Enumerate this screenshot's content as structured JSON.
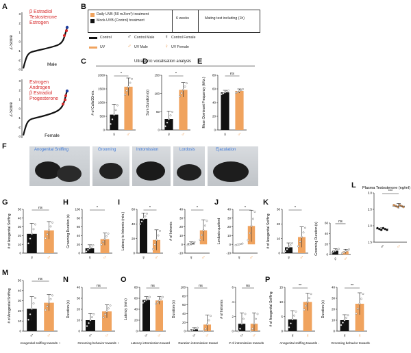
{
  "panels": {
    "A": "A",
    "B": "B",
    "C": "C",
    "D": "D",
    "E": "E",
    "F": "F",
    "G": "G",
    "H": "H",
    "I": "I",
    "J": "J",
    "K": "K",
    "L": "L",
    "M": "M",
    "N": "N",
    "O": "O",
    "P": "P"
  },
  "panelA": {
    "male_genes": [
      "β Estradiol",
      "Testosterone",
      "Estrogen"
    ],
    "female_genes": [
      "Estrogen",
      "Androgen",
      "β Estradiol",
      "Progesterone"
    ],
    "male_label": "Male",
    "female_label": "Female",
    "ylabel": "Z-Score",
    "ticks_top": [
      "3",
      "2",
      "1",
      "0",
      "-1",
      "-2",
      "-3"
    ],
    "ticks_bot": [
      "3",
      "2",
      "1",
      "0",
      "-1",
      "-2",
      "-3"
    ]
  },
  "panelB": {
    "uvb_label": "Daily UVB (50 mJ/cm²) treatment",
    "mock_label": "Mock-UVB (Control) treatment",
    "duration": "6 weeks",
    "mating": "Mating test including (1h)",
    "legend_control": "Control",
    "legend_uv": "UV",
    "legend_control_male": "Control Male",
    "legend_uv_male": "UV Male",
    "legend_control_female": "Control Female",
    "legend_uv_female": "UV Female"
  },
  "usv_title": "Ultrasonic vocalisation analysis",
  "photos": [
    "Anogenital Sniffing",
    "Grooming",
    "Intromission",
    "Lordosis",
    "Ejaculation"
  ],
  "colors": {
    "control": "#111111",
    "uv": "#f0a35e",
    "gene": "#d62728",
    "blue_dot": "#1f3f9f",
    "caption": "#3c78d8"
  },
  "chart_data": [
    {
      "panel": "C",
      "type": "bar",
      "categories": [
        "Control",
        "UV"
      ],
      "values": [
        560,
        1580
      ],
      "errors": [
        380,
        320
      ],
      "ylabel": "# of Calls/30min.",
      "ylim": [
        0,
        2000
      ],
      "ticks": [
        "0",
        "500",
        "1000",
        "1500",
        "2000"
      ],
      "sig": "*",
      "axis": "♀ / ♂"
    },
    {
      "panel": "D",
      "type": "bar",
      "categories": [
        "Control",
        "UV"
      ],
      "values": [
        30,
        110
      ],
      "errors": [
        22,
        20
      ],
      "ylabel": "Sum Duration (s)",
      "ylim": [
        0,
        150
      ],
      "ticks": [
        "0",
        "50",
        "100",
        "150"
      ],
      "sig": "*",
      "axis": "♀ / ♂"
    },
    {
      "panel": "E",
      "type": "bar",
      "categories": [
        "Control",
        "UV"
      ],
      "values": [
        55,
        57
      ],
      "errors": [
        3,
        3
      ],
      "ylabel": "Mean Dominant Frequency (kHz.)",
      "ylim": [
        0,
        80
      ],
      "ticks": [
        "0",
        "20",
        "40",
        "60",
        "80"
      ],
      "sig": "ns",
      "axis": "♀ / ♂"
    },
    {
      "panel": "G",
      "type": "bar",
      "categories": [
        "Control",
        "UV"
      ],
      "values": [
        22,
        26
      ],
      "errors": [
        12,
        10
      ],
      "ylabel": "# of Anogenital Sniffing",
      "ylim": [
        0,
        50
      ],
      "ticks": [
        "0",
        "10",
        "20",
        "30",
        "40",
        "50"
      ],
      "sig": "ns",
      "axis": "♀ / ♂"
    },
    {
      "panel": "H",
      "type": "bar",
      "categories": [
        "Control",
        "UV"
      ],
      "values": [
        11,
        32
      ],
      "errors": [
        8,
        14
      ],
      "ylabel": "Grooming Duration (s)",
      "ylim": [
        0,
        100
      ],
      "ticks": [
        "0",
        "20",
        "40",
        "60",
        "80",
        "100"
      ],
      "sig": "*",
      "axis": "♀ / ♂"
    },
    {
      "panel": "I1",
      "type": "bar",
      "categories": [
        "Control",
        "UV"
      ],
      "values": [
        47,
        18
      ],
      "errors": [
        8,
        14
      ],
      "ylabel": "Latency to Intromis (min.)",
      "ylim": [
        0,
        60
      ],
      "ticks": [
        "0",
        "20",
        "40",
        "60"
      ],
      "sig": "*",
      "axis": "♀ / ♂"
    },
    {
      "panel": "I2",
      "type": "bar",
      "categories": [
        "Control",
        "UV"
      ],
      "values": [
        1,
        16
      ],
      "errors": [
        2,
        12
      ],
      "ylabel": "# of Intromis",
      "ylim": [
        -10,
        40
      ],
      "ticks": [
        "-10",
        "0",
        "10",
        "20",
        "30",
        "40"
      ],
      "sig": "*",
      "axis": "♀ / ♂"
    },
    {
      "panel": "J",
      "type": "bar",
      "categories": [
        "Control",
        "UV"
      ],
      "values": [
        0,
        21
      ],
      "errors": [
        0,
        18
      ],
      "ylabel": "Lordosis quotient",
      "ylim": [
        -10,
        40
      ],
      "ticks": [
        "-10",
        "0",
        "10",
        "20",
        "30",
        "40"
      ],
      "sig": "*",
      "axis": "♀ / ♂"
    },
    {
      "panel": "K1",
      "type": "bar",
      "categories": [
        "Control",
        "UV"
      ],
      "values": [
        4,
        11
      ],
      "errors": [
        3,
        7
      ],
      "ylabel": "# of Anogenital Sniffing",
      "ylim": [
        0,
        30
      ],
      "ticks": [
        "0",
        "10",
        "20",
        "30"
      ],
      "sig": "*",
      "axis": "♀ / ♂"
    },
    {
      "panel": "K2",
      "type": "bar",
      "categories": [
        "Control",
        "UV"
      ],
      "values": [
        7,
        6
      ],
      "errors": [
        4,
        4
      ],
      "ylabel": "Grooming Duration (s)",
      "ylim": [
        0,
        60
      ],
      "ticks": [
        "0",
        "20",
        "40",
        "60"
      ],
      "sig": "ns",
      "axis": "♀ / ♂"
    },
    {
      "panel": "L",
      "type": "scatter",
      "title": "Plasma Testosterone (ng/ml)",
      "categories": [
        "Control",
        "UV"
      ],
      "values": [
        1.9,
        2.6
      ],
      "errors": [
        0.04,
        0.08
      ],
      "ylim": [
        1.5,
        3.0
      ],
      "ticks": [
        "1.5",
        "2.0",
        "2.5",
        "3.0"
      ],
      "sig": "***",
      "axis": "♂ / ♂"
    },
    {
      "panel": "M",
      "type": "bar",
      "categories": [
        "Control",
        "UV"
      ],
      "values": [
        22,
        28
      ],
      "errors": [
        12,
        8
      ],
      "ylabel": "# of Anogenital Sniffing",
      "ylim": [
        0,
        50
      ],
      "ticks": [
        "0",
        "10",
        "20",
        "30",
        "40",
        "50"
      ],
      "sig": "ns",
      "xlabel": "Anogenital sniffing towards ♀",
      "axis": "♂ / ♂"
    },
    {
      "panel": "N",
      "type": "bar",
      "categories": [
        "Control",
        "UV"
      ],
      "values": [
        10,
        18
      ],
      "errors": [
        6,
        6
      ],
      "ylabel": "Duration (s)",
      "ylim": [
        0,
        40
      ],
      "ticks": [
        "0",
        "10",
        "20",
        "30",
        "40"
      ],
      "sig": "ns",
      "xlabel": "Grooming behavior towards ♀",
      "axis": "♂ / ♂"
    },
    {
      "panel": "O1",
      "type": "bar",
      "categories": [
        "Control",
        "UV"
      ],
      "values": [
        57,
        56
      ],
      "errors": [
        6,
        7
      ],
      "ylabel": "Latency (min.)",
      "ylim": [
        0,
        80
      ],
      "ticks": [
        "0",
        "20",
        "40",
        "60",
        "80"
      ],
      "sig": "ns",
      "xlabel": "Latency intromission towards ♀",
      "axis": "♂ / ♂"
    },
    {
      "panel": "O2",
      "type": "bar",
      "categories": [
        "Control",
        "UV"
      ],
      "values": [
        4,
        15
      ],
      "errors": [
        4,
        22
      ],
      "ylabel": "Duration (s)",
      "ylim": [
        0,
        100
      ],
      "ticks": [
        "0",
        "20",
        "40",
        "60",
        "80",
        "100"
      ],
      "sig": "ns",
      "xlabel": "Duration intromission towards ♀",
      "axis": "♂ / ♂"
    },
    {
      "panel": "O3",
      "type": "bar",
      "categories": [
        "Control",
        "UV"
      ],
      "values": [
        1,
        1
      ],
      "errors": [
        1.5,
        1.5
      ],
      "ylabel": "# of Intromis",
      "ylim": [
        0,
        6
      ],
      "ticks": [
        "0",
        "2",
        "4",
        "6"
      ],
      "sig": "ns",
      "xlabel": "# of intromission towards ♀",
      "axis": "♂ / ♂"
    },
    {
      "panel": "P1",
      "type": "bar",
      "categories": [
        "Control",
        "UV"
      ],
      "values": [
        4,
        10
      ],
      "errors": [
        3,
        3
      ],
      "ylabel": "# of Anogenital Sniffing",
      "ylim": [
        0,
        15
      ],
      "ticks": [
        "0",
        "5",
        "10",
        "15"
      ],
      "sig": "**",
      "xlabel": "Anogenital sniffing towards ♂",
      "axis": "♀ / ♀"
    },
    {
      "panel": "P2",
      "type": "bar",
      "categories": [
        "Control",
        "UV"
      ],
      "values": [
        10,
        25
      ],
      "errors": [
        5,
        10
      ],
      "ylabel": "Duration (s)",
      "ylim": [
        0,
        40
      ],
      "ticks": [
        "0",
        "10",
        "20",
        "30",
        "40"
      ],
      "sig": "**",
      "xlabel": "Grooming behavior towards ♂",
      "axis": "♀ / ♀"
    }
  ]
}
